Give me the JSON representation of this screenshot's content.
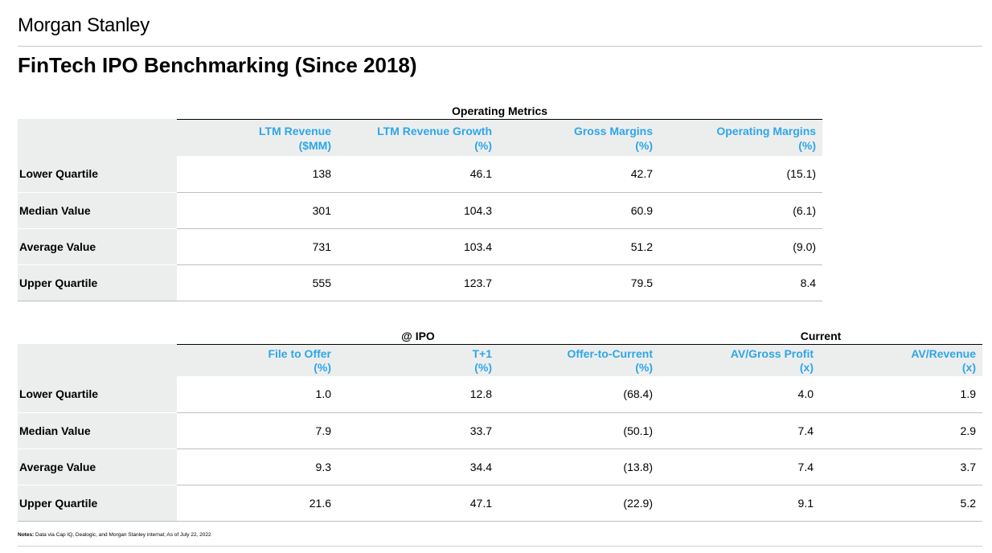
{
  "brand": "Morgan Stanley",
  "title": "FinTech IPO Benchmarking (Since 2018)",
  "table1": {
    "group_label": "Operating Metrics",
    "columns": [
      {
        "line1": "LTM Revenue",
        "line2": "($MM)"
      },
      {
        "line1": "LTM Revenue Growth",
        "line2": "(%)"
      },
      {
        "line1": "Gross Margins",
        "line2": "(%)"
      },
      {
        "line1": "Operating Margins",
        "line2": "(%)"
      }
    ],
    "rows": [
      {
        "label": "Lower Quartile",
        "values": [
          "138",
          "46.1",
          "42.7",
          "(15.1)"
        ]
      },
      {
        "label": "Median Value",
        "values": [
          "301",
          "104.3",
          "60.9",
          "(6.1)"
        ]
      },
      {
        "label": "Average Value",
        "values": [
          "731",
          "103.4",
          "51.2",
          "(9.0)"
        ]
      },
      {
        "label": "Upper Quartile",
        "values": [
          "555",
          "123.7",
          "79.5",
          "8.4"
        ]
      }
    ]
  },
  "table2": {
    "group_ipo": "@ IPO",
    "group_current": "Current",
    "columns": [
      {
        "line1": "File to Offer",
        "line2": "(%)"
      },
      {
        "line1": "T+1",
        "line2": "(%)"
      },
      {
        "line1": "Offer-to-Current",
        "line2": "(%)"
      },
      {
        "line1": "AV/Gross Profit",
        "line2": "(x)"
      },
      {
        "line1": "AV/Revenue",
        "line2": "(x)"
      }
    ],
    "rows": [
      {
        "label": "Lower Quartile",
        "values": [
          "1.0",
          "12.8",
          "(68.4)",
          "4.0",
          "1.9"
        ]
      },
      {
        "label": "Median Value",
        "values": [
          "7.9",
          "33.7",
          "(50.1)",
          "7.4",
          "2.9"
        ]
      },
      {
        "label": "Average Value",
        "values": [
          "9.3",
          "34.4",
          "(13.8)",
          "7.4",
          "3.7"
        ]
      },
      {
        "label": "Upper Quartile",
        "values": [
          "21.6",
          "47.1",
          "(22.9)",
          "9.1",
          "5.2"
        ]
      }
    ]
  },
  "notes": {
    "label": "Notes:",
    "text": " Data via Cap IQ, Dealogic, and Morgan Stanley internal; As of July 22, 2022"
  }
}
